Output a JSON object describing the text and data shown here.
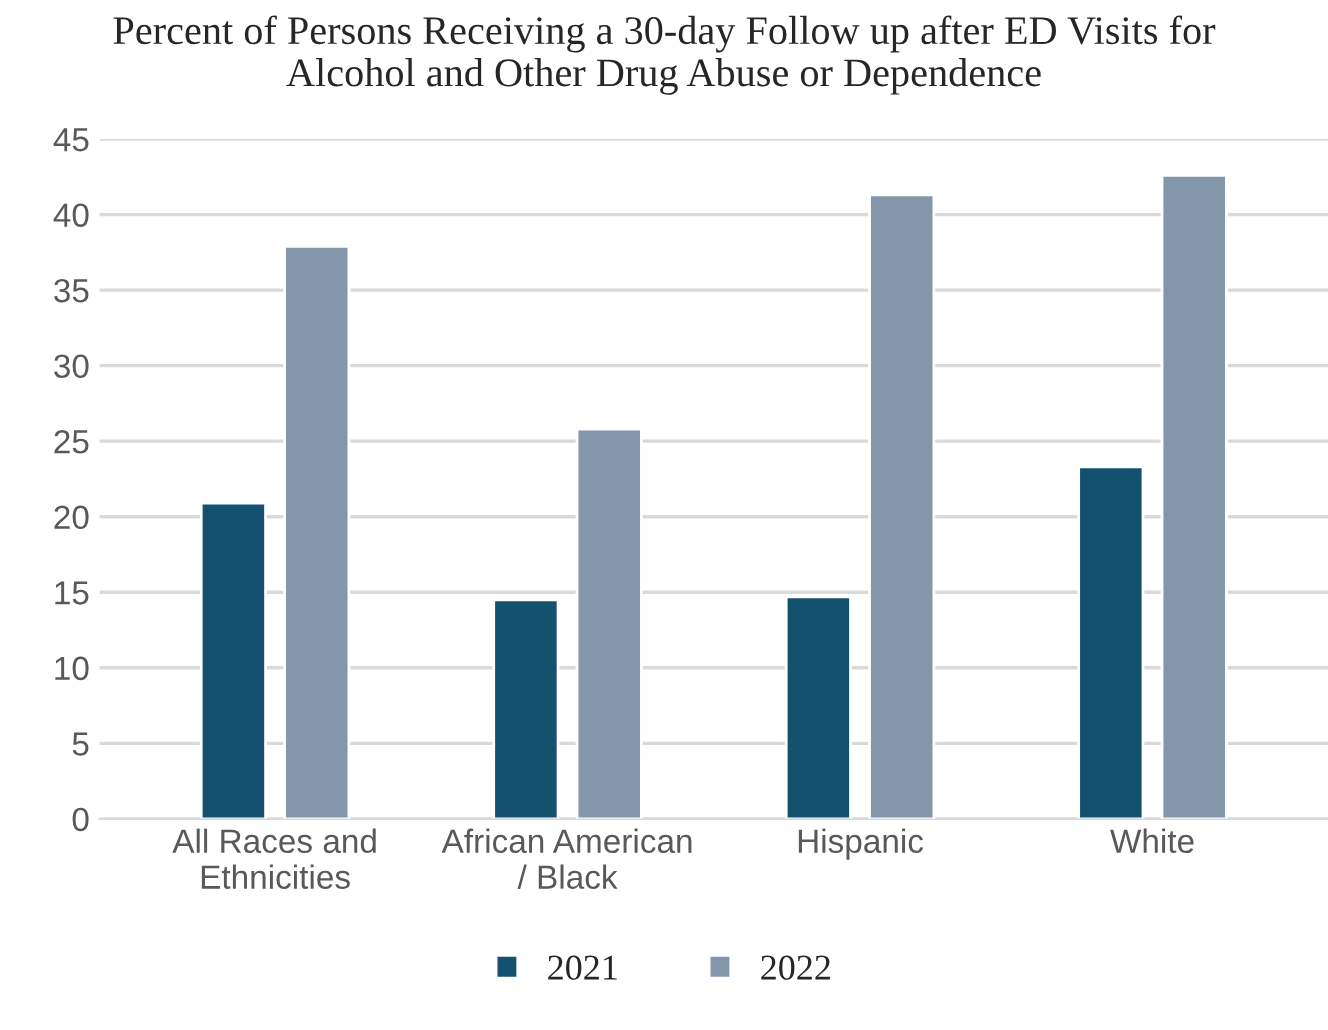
{
  "chart_data": {
    "type": "bar",
    "title": "Percent of Persons Receiving a 30-day Follow up after ED Visits for\nAlcohol and Other Drug Abuse or Dependence",
    "categories": [
      "All Races and\nEthnicities",
      "African American\n/ Black",
      "Hispanic",
      "White"
    ],
    "series": [
      {
        "name": "2021",
        "color": "#14516f",
        "values": [
          20.9,
          14.5,
          14.7,
          23.3
        ]
      },
      {
        "name": "2022",
        "color": "#8497aa",
        "values": [
          37.9,
          25.8,
          41.3,
          42.6
        ]
      }
    ],
    "ylim": [
      0,
      45
    ],
    "yticks": [
      0,
      5,
      10,
      15,
      20,
      25,
      30,
      35,
      40,
      45
    ],
    "grid": "y",
    "legend": "bottom"
  }
}
